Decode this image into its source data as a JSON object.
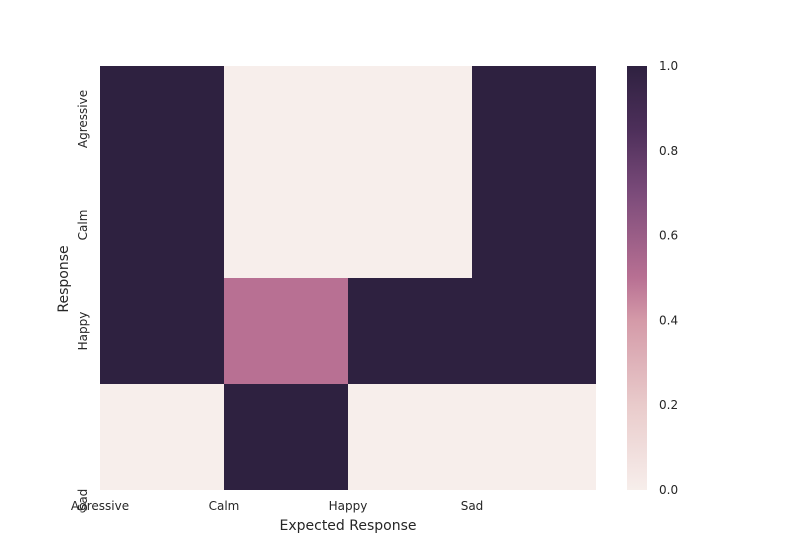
{
  "chart_data": {
    "type": "heatmap",
    "title": "",
    "xlabel": "Expected Response",
    "ylabel": "Response",
    "x_tick_labels": [
      "Agressive",
      "Calm",
      "Happy",
      "Sad"
    ],
    "y_tick_labels": [
      "Agressive",
      "Calm",
      "Happy",
      "Sad"
    ],
    "x_cells": 4,
    "y_cells": 4,
    "x_tick_positions": [
      0,
      1,
      2,
      3
    ],
    "y_tick_positions": [
      1,
      2,
      3,
      4
    ],
    "cells": [
      {
        "x0": 0,
        "x1": 1,
        "y0": 0,
        "y1": 2,
        "value": 1.0
      },
      {
        "x0": 1,
        "x1": 3,
        "y0": 0,
        "y1": 2,
        "value": 0.0
      },
      {
        "x0": 3,
        "x1": 4,
        "y0": 0,
        "y1": 2,
        "value": 1.0
      },
      {
        "x0": 0,
        "x1": 1,
        "y0": 2,
        "y1": 3,
        "value": 1.0
      },
      {
        "x0": 1,
        "x1": 2,
        "y0": 2,
        "y1": 3,
        "value": 0.5
      },
      {
        "x0": 2,
        "x1": 4,
        "y0": 2,
        "y1": 3,
        "value": 1.0
      },
      {
        "x0": 0,
        "x1": 1,
        "y0": 3,
        "y1": 4,
        "value": 0.0
      },
      {
        "x0": 1,
        "x1": 2,
        "y0": 3,
        "y1": 4,
        "value": 1.0
      },
      {
        "x0": 2,
        "x1": 4,
        "y0": 3,
        "y1": 4,
        "value": 0.0
      }
    ],
    "colorbar": {
      "range": [
        0.0,
        1.0
      ],
      "ticks": [
        "0.0",
        "0.2",
        "0.4",
        "0.6",
        "0.8",
        "1.0"
      ],
      "stops": [
        {
          "v": 0.0,
          "color": "#f7eeeb"
        },
        {
          "v": 0.2,
          "color": "#e9cbcb"
        },
        {
          "v": 0.4,
          "color": "#d49aa8"
        },
        {
          "v": 0.5,
          "color": "#b87093"
        },
        {
          "v": 0.7,
          "color": "#7b4b7a"
        },
        {
          "v": 0.85,
          "color": "#4d2f5a"
        },
        {
          "v": 1.0,
          "color": "#2e2140"
        }
      ]
    },
    "grid": false,
    "legend": "colorbar-right"
  }
}
